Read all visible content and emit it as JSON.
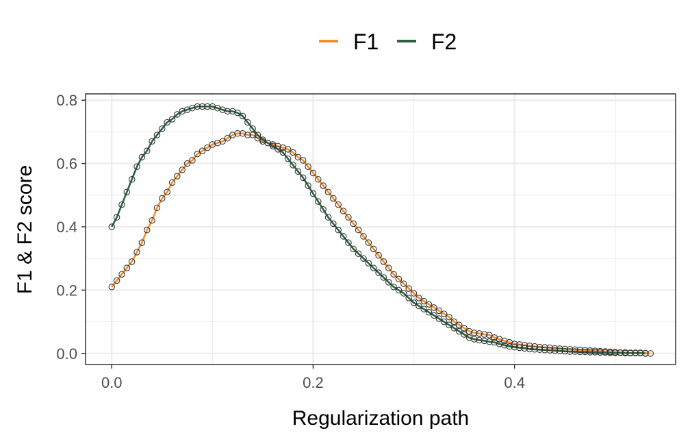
{
  "chart_data": {
    "type": "line",
    "xlabel": "Regularization path",
    "ylabel": "F1 & F2 score",
    "xlim": [
      -0.026,
      0.56
    ],
    "ylim": [
      -0.035,
      0.82
    ],
    "xticks": [
      0.0,
      0.2,
      0.4
    ],
    "xtick_labels": [
      "0.0",
      "0.2",
      "0.4"
    ],
    "yticks": [
      0.0,
      0.2,
      0.4,
      0.6,
      0.8
    ],
    "ytick_labels": [
      "0.0",
      "0.2",
      "0.4",
      "0.6",
      "0.8"
    ],
    "grid": true,
    "legend_position": "top",
    "series": [
      {
        "name": "F1",
        "color": "#F28E2B",
        "points": [
          [
            0.0,
            0.21
          ],
          [
            0.005,
            0.23
          ],
          [
            0.01,
            0.25
          ],
          [
            0.015,
            0.27
          ],
          [
            0.02,
            0.29
          ],
          [
            0.025,
            0.32
          ],
          [
            0.03,
            0.35
          ],
          [
            0.035,
            0.39
          ],
          [
            0.04,
            0.42
          ],
          [
            0.045,
            0.46
          ],
          [
            0.05,
            0.49
          ],
          [
            0.055,
            0.51
          ],
          [
            0.06,
            0.54
          ],
          [
            0.065,
            0.56
          ],
          [
            0.07,
            0.58
          ],
          [
            0.075,
            0.6
          ],
          [
            0.08,
            0.61
          ],
          [
            0.085,
            0.63
          ],
          [
            0.09,
            0.64
          ],
          [
            0.095,
            0.65
          ],
          [
            0.1,
            0.66
          ],
          [
            0.105,
            0.665
          ],
          [
            0.11,
            0.67
          ],
          [
            0.115,
            0.68
          ],
          [
            0.12,
            0.69
          ],
          [
            0.125,
            0.695
          ],
          [
            0.13,
            0.695
          ],
          [
            0.135,
            0.69
          ],
          [
            0.14,
            0.69
          ],
          [
            0.145,
            0.68
          ],
          [
            0.15,
            0.67
          ],
          [
            0.155,
            0.665
          ],
          [
            0.16,
            0.66
          ],
          [
            0.165,
            0.655
          ],
          [
            0.17,
            0.65
          ],
          [
            0.175,
            0.645
          ],
          [
            0.18,
            0.635
          ],
          [
            0.185,
            0.62
          ],
          [
            0.19,
            0.61
          ],
          [
            0.195,
            0.59
          ],
          [
            0.2,
            0.57
          ],
          [
            0.205,
            0.55
          ],
          [
            0.21,
            0.53
          ],
          [
            0.215,
            0.51
          ],
          [
            0.22,
            0.49
          ],
          [
            0.225,
            0.47
          ],
          [
            0.23,
            0.45
          ],
          [
            0.235,
            0.43
          ],
          [
            0.24,
            0.41
          ],
          [
            0.245,
            0.39
          ],
          [
            0.25,
            0.37
          ],
          [
            0.255,
            0.35
          ],
          [
            0.26,
            0.33
          ],
          [
            0.265,
            0.31
          ],
          [
            0.27,
            0.29
          ],
          [
            0.275,
            0.27
          ],
          [
            0.28,
            0.25
          ],
          [
            0.285,
            0.235
          ],
          [
            0.29,
            0.22
          ],
          [
            0.295,
            0.205
          ],
          [
            0.3,
            0.19
          ],
          [
            0.305,
            0.175
          ],
          [
            0.31,
            0.165
          ],
          [
            0.315,
            0.155
          ],
          [
            0.32,
            0.145
          ],
          [
            0.325,
            0.135
          ],
          [
            0.33,
            0.125
          ],
          [
            0.335,
            0.115
          ],
          [
            0.34,
            0.1
          ],
          [
            0.345,
            0.09
          ],
          [
            0.35,
            0.08
          ],
          [
            0.355,
            0.07
          ],
          [
            0.36,
            0.065
          ],
          [
            0.365,
            0.063
          ],
          [
            0.37,
            0.06
          ],
          [
            0.375,
            0.058
          ],
          [
            0.38,
            0.05
          ],
          [
            0.385,
            0.045
          ],
          [
            0.39,
            0.04
          ],
          [
            0.395,
            0.035
          ],
          [
            0.4,
            0.03
          ],
          [
            0.405,
            0.028
          ],
          [
            0.41,
            0.026
          ],
          [
            0.415,
            0.024
          ],
          [
            0.42,
            0.022
          ],
          [
            0.425,
            0.02
          ],
          [
            0.43,
            0.019
          ],
          [
            0.435,
            0.018
          ],
          [
            0.44,
            0.016
          ],
          [
            0.445,
            0.015
          ],
          [
            0.45,
            0.014
          ],
          [
            0.455,
            0.013
          ],
          [
            0.46,
            0.012
          ],
          [
            0.465,
            0.011
          ],
          [
            0.47,
            0.01
          ],
          [
            0.475,
            0.009
          ],
          [
            0.48,
            0.008
          ],
          [
            0.485,
            0.007
          ],
          [
            0.49,
            0.006
          ],
          [
            0.495,
            0.005
          ],
          [
            0.5,
            0.004
          ],
          [
            0.505,
            0.003
          ],
          [
            0.51,
            0.003
          ],
          [
            0.515,
            0.002
          ],
          [
            0.52,
            0.002
          ],
          [
            0.525,
            0.002
          ],
          [
            0.53,
            0.001
          ],
          [
            0.535,
            0.0
          ]
        ]
      },
      {
        "name": "F2",
        "color": "#2B6340",
        "points": [
          [
            0.0,
            0.4
          ],
          [
            0.005,
            0.43
          ],
          [
            0.01,
            0.47
          ],
          [
            0.015,
            0.51
          ],
          [
            0.02,
            0.55
          ],
          [
            0.025,
            0.59
          ],
          [
            0.03,
            0.62
          ],
          [
            0.035,
            0.64
          ],
          [
            0.04,
            0.67
          ],
          [
            0.045,
            0.69
          ],
          [
            0.05,
            0.71
          ],
          [
            0.055,
            0.73
          ],
          [
            0.06,
            0.74
          ],
          [
            0.065,
            0.755
          ],
          [
            0.07,
            0.765
          ],
          [
            0.075,
            0.77
          ],
          [
            0.08,
            0.775
          ],
          [
            0.085,
            0.78
          ],
          [
            0.09,
            0.78
          ],
          [
            0.095,
            0.78
          ],
          [
            0.1,
            0.78
          ],
          [
            0.105,
            0.775
          ],
          [
            0.11,
            0.77
          ],
          [
            0.115,
            0.765
          ],
          [
            0.12,
            0.765
          ],
          [
            0.125,
            0.76
          ],
          [
            0.13,
            0.75
          ],
          [
            0.135,
            0.73
          ],
          [
            0.14,
            0.71
          ],
          [
            0.145,
            0.69
          ],
          [
            0.15,
            0.675
          ],
          [
            0.155,
            0.665
          ],
          [
            0.16,
            0.655
          ],
          [
            0.165,
            0.645
          ],
          [
            0.17,
            0.635
          ],
          [
            0.175,
            0.615
          ],
          [
            0.18,
            0.595
          ],
          [
            0.185,
            0.575
          ],
          [
            0.19,
            0.555
          ],
          [
            0.195,
            0.53
          ],
          [
            0.2,
            0.505
          ],
          [
            0.205,
            0.48
          ],
          [
            0.21,
            0.455
          ],
          [
            0.215,
            0.43
          ],
          [
            0.22,
            0.41
          ],
          [
            0.225,
            0.39
          ],
          [
            0.23,
            0.37
          ],
          [
            0.235,
            0.35
          ],
          [
            0.24,
            0.33
          ],
          [
            0.245,
            0.315
          ],
          [
            0.25,
            0.3
          ],
          [
            0.255,
            0.285
          ],
          [
            0.26,
            0.27
          ],
          [
            0.265,
            0.255
          ],
          [
            0.27,
            0.24
          ],
          [
            0.275,
            0.225
          ],
          [
            0.28,
            0.21
          ],
          [
            0.285,
            0.2
          ],
          [
            0.29,
            0.19
          ],
          [
            0.295,
            0.175
          ],
          [
            0.3,
            0.16
          ],
          [
            0.305,
            0.15
          ],
          [
            0.31,
            0.14
          ],
          [
            0.315,
            0.13
          ],
          [
            0.32,
            0.12
          ],
          [
            0.325,
            0.11
          ],
          [
            0.33,
            0.1
          ],
          [
            0.335,
            0.09
          ],
          [
            0.34,
            0.08
          ],
          [
            0.345,
            0.07
          ],
          [
            0.35,
            0.06
          ],
          [
            0.355,
            0.05
          ],
          [
            0.36,
            0.045
          ],
          [
            0.365,
            0.042
          ],
          [
            0.37,
            0.04
          ],
          [
            0.375,
            0.037
          ],
          [
            0.38,
            0.035
          ],
          [
            0.385,
            0.03
          ],
          [
            0.39,
            0.026
          ],
          [
            0.395,
            0.022
          ],
          [
            0.4,
            0.02
          ],
          [
            0.405,
            0.018
          ],
          [
            0.41,
            0.016
          ],
          [
            0.415,
            0.014
          ],
          [
            0.42,
            0.013
          ],
          [
            0.425,
            0.012
          ],
          [
            0.43,
            0.011
          ],
          [
            0.435,
            0.01
          ],
          [
            0.44,
            0.009
          ],
          [
            0.445,
            0.008
          ],
          [
            0.45,
            0.007
          ],
          [
            0.455,
            0.006
          ],
          [
            0.46,
            0.006
          ],
          [
            0.465,
            0.005
          ],
          [
            0.47,
            0.005
          ],
          [
            0.475,
            0.004
          ],
          [
            0.48,
            0.004
          ],
          [
            0.485,
            0.003
          ],
          [
            0.49,
            0.003
          ],
          [
            0.495,
            0.002
          ],
          [
            0.5,
            0.002
          ],
          [
            0.505,
            0.002
          ],
          [
            0.51,
            0.001
          ],
          [
            0.515,
            0.001
          ],
          [
            0.52,
            0.001
          ],
          [
            0.525,
            0.001
          ],
          [
            0.53,
            0.0
          ]
        ]
      }
    ]
  }
}
